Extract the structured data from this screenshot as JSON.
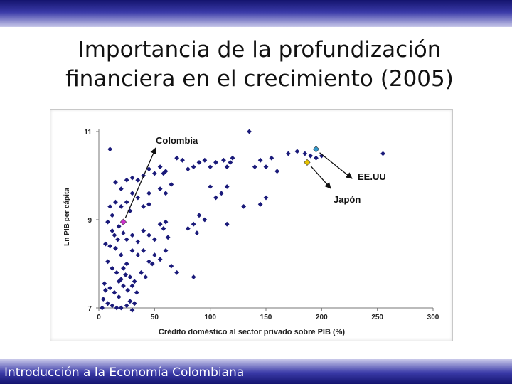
{
  "slide": {
    "title": "Importancia de la profundización financiera en el crecimiento (2005)",
    "footer": "Introducción a la Economía Colombiana"
  },
  "colors": {
    "band_dark": "#14146e",
    "band_light": "#c9c9ea",
    "points": "#1a1a7a",
    "colombia": "#cc33cc",
    "eeuu": "#3399cc",
    "japon": "#e6c200"
  },
  "chart_data": {
    "type": "scatter",
    "title": "",
    "xlabel": "Crédito doméstico al sector privado sobre PIB (%)",
    "ylabel": "Ln PIB per cápita",
    "xlim": [
      0,
      300
    ],
    "ylim": [
      7,
      11
    ],
    "xticks": [
      0,
      50,
      100,
      150,
      200,
      250,
      300
    ],
    "yticks": [
      7,
      9,
      11
    ],
    "grid": false,
    "legend": "none",
    "series": [
      {
        "points": [
          [
            10,
            10.6
          ],
          [
            135,
            11.0
          ],
          [
            255,
            10.5
          ],
          [
            170,
            10.5
          ],
          [
            178,
            10.55
          ],
          [
            185,
            10.5
          ],
          [
            190,
            10.45
          ],
          [
            195,
            10.4
          ],
          [
            200,
            10.45
          ],
          [
            155,
            10.4
          ],
          [
            150,
            10.2
          ],
          [
            160,
            10.1
          ],
          [
            145,
            10.35
          ],
          [
            140,
            10.2
          ],
          [
            120,
            10.4
          ],
          [
            118,
            10.3
          ],
          [
            115,
            10.2
          ],
          [
            112,
            10.35
          ],
          [
            105,
            10.3
          ],
          [
            100,
            10.2
          ],
          [
            95,
            10.35
          ],
          [
            90,
            10.3
          ],
          [
            85,
            10.2
          ],
          [
            80,
            10.15
          ],
          [
            75,
            10.35
          ],
          [
            70,
            10.4
          ],
          [
            60,
            10.1
          ],
          [
            58,
            10.05
          ],
          [
            55,
            10.2
          ],
          [
            50,
            10.05
          ],
          [
            45,
            10.15
          ],
          [
            40,
            10.0
          ],
          [
            35,
            9.9
          ],
          [
            30,
            9.95
          ],
          [
            25,
            9.9
          ],
          [
            20,
            9.7
          ],
          [
            15,
            9.85
          ],
          [
            45,
            9.6
          ],
          [
            55,
            9.7
          ],
          [
            60,
            9.6
          ],
          [
            65,
            9.8
          ],
          [
            100,
            9.75
          ],
          [
            110,
            9.6
          ],
          [
            105,
            9.5
          ],
          [
            115,
            9.75
          ],
          [
            130,
            9.3
          ],
          [
            150,
            9.5
          ],
          [
            145,
            9.35
          ],
          [
            30,
            9.6
          ],
          [
            35,
            9.5
          ],
          [
            40,
            9.3
          ],
          [
            45,
            9.35
          ],
          [
            25,
            9.4
          ],
          [
            20,
            9.3
          ],
          [
            15,
            9.4
          ],
          [
            10,
            9.3
          ],
          [
            28,
            9.2
          ],
          [
            12,
            9.1
          ],
          [
            8,
            8.95
          ],
          [
            12,
            8.75
          ],
          [
            18,
            8.85
          ],
          [
            22,
            8.7
          ],
          [
            25,
            8.55
          ],
          [
            30,
            8.65
          ],
          [
            35,
            8.5
          ],
          [
            40,
            8.75
          ],
          [
            45,
            8.65
          ],
          [
            50,
            8.55
          ],
          [
            55,
            8.9
          ],
          [
            58,
            8.8
          ],
          [
            60,
            8.95
          ],
          [
            62,
            8.6
          ],
          [
            80,
            8.8
          ],
          [
            88,
            8.7
          ],
          [
            85,
            8.9
          ],
          [
            95,
            9.0
          ],
          [
            90,
            9.1
          ],
          [
            115,
            8.9
          ],
          [
            60,
            8.3
          ],
          [
            55,
            8.1
          ],
          [
            50,
            8.2
          ],
          [
            45,
            8.05
          ],
          [
            40,
            8.3
          ],
          [
            35,
            8.2
          ],
          [
            30,
            8.3
          ],
          [
            25,
            8.0
          ],
          [
            20,
            8.2
          ],
          [
            15,
            8.35
          ],
          [
            10,
            8.4
          ],
          [
            6,
            8.45
          ],
          [
            8,
            8.05
          ],
          [
            12,
            7.9
          ],
          [
            16,
            7.8
          ],
          [
            22,
            7.9
          ],
          [
            28,
            7.7
          ],
          [
            32,
            7.6
          ],
          [
            38,
            7.8
          ],
          [
            42,
            7.7
          ],
          [
            48,
            8.0
          ],
          [
            65,
            7.95
          ],
          [
            70,
            7.8
          ],
          [
            85,
            7.7
          ],
          [
            5,
            7.55
          ],
          [
            10,
            7.45
          ],
          [
            14,
            7.35
          ],
          [
            18,
            7.25
          ],
          [
            22,
            7.5
          ],
          [
            26,
            7.4
          ],
          [
            20,
            7.65
          ],
          [
            30,
            7.5
          ],
          [
            34,
            7.35
          ],
          [
            4,
            7.2
          ],
          [
            8,
            7.1
          ],
          [
            12,
            7.05
          ],
          [
            16,
            7.0
          ],
          [
            20,
            7.0
          ],
          [
            25,
            7.05
          ],
          [
            28,
            7.15
          ],
          [
            6,
            7.4
          ],
          [
            3,
            7.0
          ],
          [
            30,
            6.95
          ],
          [
            32,
            7.1
          ],
          [
            18,
            7.6
          ],
          [
            24,
            7.75
          ],
          [
            14,
            8.65
          ],
          [
            17,
            8.55
          ]
        ]
      }
    ],
    "highlights": [
      {
        "label": "Colombia",
        "x": 22,
        "y": 8.95
      },
      {
        "label": "EE.UU",
        "x": 195,
        "y": 10.6
      },
      {
        "label": "Japón",
        "x": 187,
        "y": 10.3
      }
    ]
  }
}
